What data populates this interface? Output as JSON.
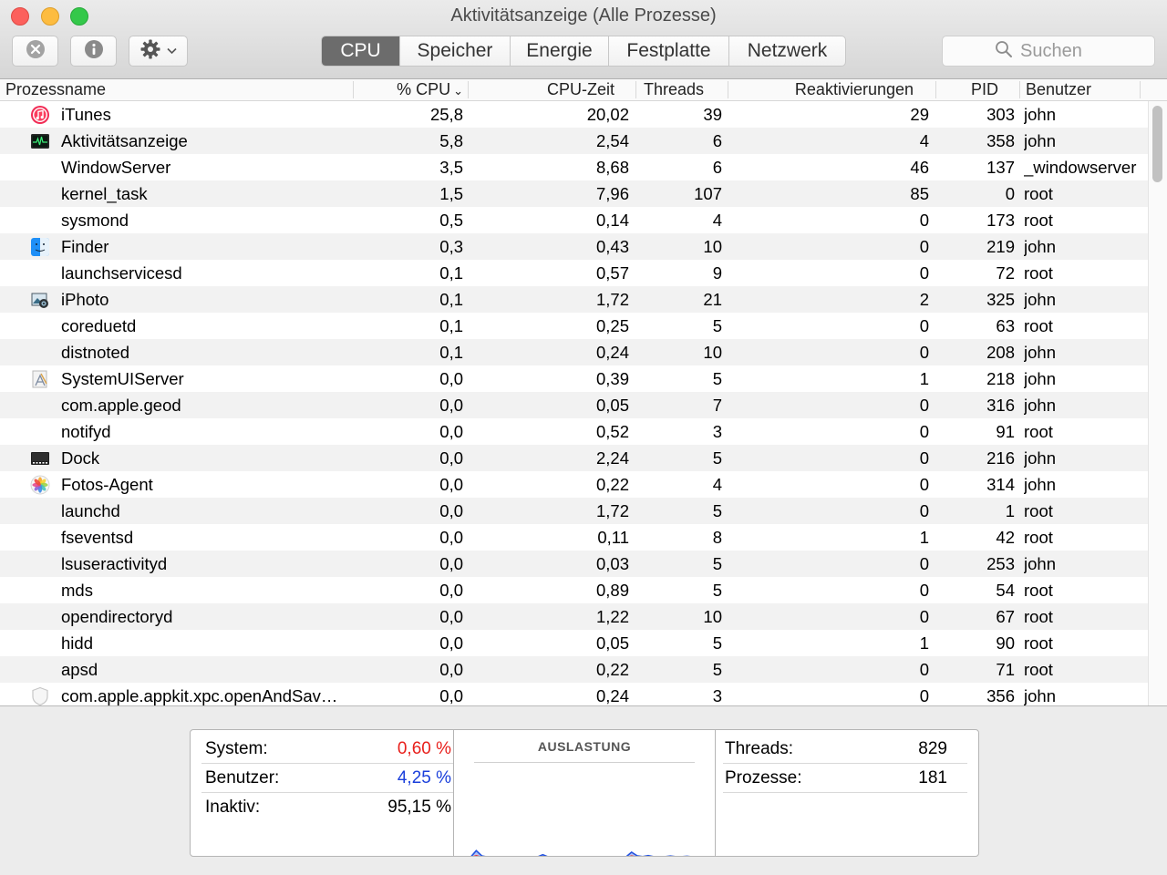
{
  "window": {
    "title": "Aktivitätsanzeige (Alle Prozesse)"
  },
  "toolbar": {
    "stop_icon": "x-circle-icon",
    "info_icon": "info-circle-icon",
    "gear_icon": "gear-icon",
    "tabs": [
      "CPU",
      "Speicher",
      "Energie",
      "Festplatte",
      "Netzwerk"
    ],
    "active_tab": "CPU",
    "search_placeholder": "Suchen"
  },
  "table": {
    "columns": [
      "Prozessname",
      "% CPU",
      "CPU-Zeit",
      "Threads",
      "Reaktivierungen",
      "PID",
      "Benutzer"
    ],
    "sort_indicator": "⌄",
    "rows": [
      {
        "name": "iTunes",
        "icon": "itunes",
        "cpu": "25,8",
        "time": "20,02",
        "threads": "39",
        "wakeups": "29",
        "pid": "303",
        "user": "john"
      },
      {
        "name": "Aktivitätsanzeige",
        "icon": "activity-monitor",
        "cpu": "5,8",
        "time": "2,54",
        "threads": "6",
        "wakeups": "4",
        "pid": "358",
        "user": "john"
      },
      {
        "name": "WindowServer",
        "icon": "",
        "cpu": "3,5",
        "time": "8,68",
        "threads": "6",
        "wakeups": "46",
        "pid": "137",
        "user": "_windowserver"
      },
      {
        "name": "kernel_task",
        "icon": "",
        "cpu": "1,5",
        "time": "7,96",
        "threads": "107",
        "wakeups": "85",
        "pid": "0",
        "user": "root"
      },
      {
        "name": "sysmond",
        "icon": "",
        "cpu": "0,5",
        "time": "0,14",
        "threads": "4",
        "wakeups": "0",
        "pid": "173",
        "user": "root"
      },
      {
        "name": "Finder",
        "icon": "finder",
        "cpu": "0,3",
        "time": "0,43",
        "threads": "10",
        "wakeups": "0",
        "pid": "219",
        "user": "john"
      },
      {
        "name": "launchservicesd",
        "icon": "",
        "cpu": "0,1",
        "time": "0,57",
        "threads": "9",
        "wakeups": "0",
        "pid": "72",
        "user": "root"
      },
      {
        "name": "iPhoto",
        "icon": "iphoto",
        "cpu": "0,1",
        "time": "1,72",
        "threads": "21",
        "wakeups": "2",
        "pid": "325",
        "user": "john"
      },
      {
        "name": "coreduetd",
        "icon": "",
        "cpu": "0,1",
        "time": "0,25",
        "threads": "5",
        "wakeups": "0",
        "pid": "63",
        "user": "root"
      },
      {
        "name": "distnoted",
        "icon": "",
        "cpu": "0,1",
        "time": "0,24",
        "threads": "10",
        "wakeups": "0",
        "pid": "208",
        "user": "john"
      },
      {
        "name": "SystemUIServer",
        "icon": "systemuiserver",
        "cpu": "0,0",
        "time": "0,39",
        "threads": "5",
        "wakeups": "1",
        "pid": "218",
        "user": "john"
      },
      {
        "name": "com.apple.geod",
        "icon": "",
        "cpu": "0,0",
        "time": "0,05",
        "threads": "7",
        "wakeups": "0",
        "pid": "316",
        "user": "john"
      },
      {
        "name": "notifyd",
        "icon": "",
        "cpu": "0,0",
        "time": "0,52",
        "threads": "3",
        "wakeups": "0",
        "pid": "91",
        "user": "root"
      },
      {
        "name": "Dock",
        "icon": "dock",
        "cpu": "0,0",
        "time": "2,24",
        "threads": "5",
        "wakeups": "0",
        "pid": "216",
        "user": "john"
      },
      {
        "name": "Fotos-Agent",
        "icon": "photos",
        "cpu": "0,0",
        "time": "0,22",
        "threads": "4",
        "wakeups": "0",
        "pid": "314",
        "user": "john"
      },
      {
        "name": "launchd",
        "icon": "",
        "cpu": "0,0",
        "time": "1,72",
        "threads": "5",
        "wakeups": "0",
        "pid": "1",
        "user": "root"
      },
      {
        "name": "fseventsd",
        "icon": "",
        "cpu": "0,0",
        "time": "0,11",
        "threads": "8",
        "wakeups": "1",
        "pid": "42",
        "user": "root"
      },
      {
        "name": "lsuseractivityd",
        "icon": "",
        "cpu": "0,0",
        "time": "0,03",
        "threads": "5",
        "wakeups": "0",
        "pid": "253",
        "user": "john"
      },
      {
        "name": "mds",
        "icon": "",
        "cpu": "0,0",
        "time": "0,89",
        "threads": "5",
        "wakeups": "0",
        "pid": "54",
        "user": "root"
      },
      {
        "name": "opendirectoryd",
        "icon": "",
        "cpu": "0,0",
        "time": "1,22",
        "threads": "10",
        "wakeups": "0",
        "pid": "67",
        "user": "root"
      },
      {
        "name": "hidd",
        "icon": "",
        "cpu": "0,0",
        "time": "0,05",
        "threads": "5",
        "wakeups": "1",
        "pid": "90",
        "user": "root"
      },
      {
        "name": "apsd",
        "icon": "",
        "cpu": "0,0",
        "time": "0,22",
        "threads": "5",
        "wakeups": "0",
        "pid": "71",
        "user": "root"
      },
      {
        "name": "com.apple.appkit.xpc.openAndSav…",
        "icon": "shield",
        "cpu": "0,0",
        "time": "0,24",
        "threads": "3",
        "wakeups": "0",
        "pid": "356",
        "user": "john"
      }
    ]
  },
  "summary": {
    "system": {
      "label": "System:",
      "value": "0,60 %",
      "color": "#e8201c"
    },
    "user": {
      "label": "Benutzer:",
      "value": "4,25 %",
      "color": "#1a3fdb"
    },
    "idle": {
      "label": "Inaktiv:",
      "value": "95,15 %"
    },
    "graph_title": "AUSLASTUNG",
    "threads": {
      "label": "Threads:",
      "value": "829"
    },
    "processes": {
      "label": "Prozesse:",
      "value": "181"
    }
  },
  "load_graph": {
    "user_series": [
      0.2,
      0.2,
      0.6,
      0.5,
      5.5,
      1.5,
      0.6,
      0.5,
      0.6,
      0.7,
      0.6,
      0.9,
      0.7,
      0.6,
      0.7,
      0.6,
      2.5,
      0.6,
      0.8,
      0.7,
      0.6,
      0.8,
      0.7,
      0.6,
      0.8,
      0.7,
      0.6,
      0.7,
      0.9,
      0.7,
      0.8,
      0.7,
      4.2,
      1.5,
      0.9,
      1.8,
      0.8,
      0.9,
      0.8,
      1.4,
      0.8,
      0.8,
      1.2,
      0.7,
      0.7,
      0.8,
      0.7,
      0.6
    ],
    "system_series": [
      0.1,
      0.1,
      0.2,
      0.2,
      2.2,
      0.5,
      0.2,
      0.2,
      0.2,
      0.2,
      0.2,
      0.3,
      0.2,
      0.2,
      0.2,
      0.2,
      0.8,
      0.2,
      0.3,
      0.2,
      0.2,
      0.3,
      0.2,
      0.2,
      0.3,
      0.2,
      0.2,
      0.2,
      0.3,
      0.2,
      0.3,
      0.2,
      1.8,
      0.6,
      0.3,
      0.5,
      0.3,
      0.3,
      0.3,
      0.4,
      0.3,
      0.3,
      0.4,
      0.2,
      0.2,
      0.3,
      0.2,
      0.2
    ],
    "user_color": "#2453e0",
    "system_color": "#ec2b2b"
  }
}
